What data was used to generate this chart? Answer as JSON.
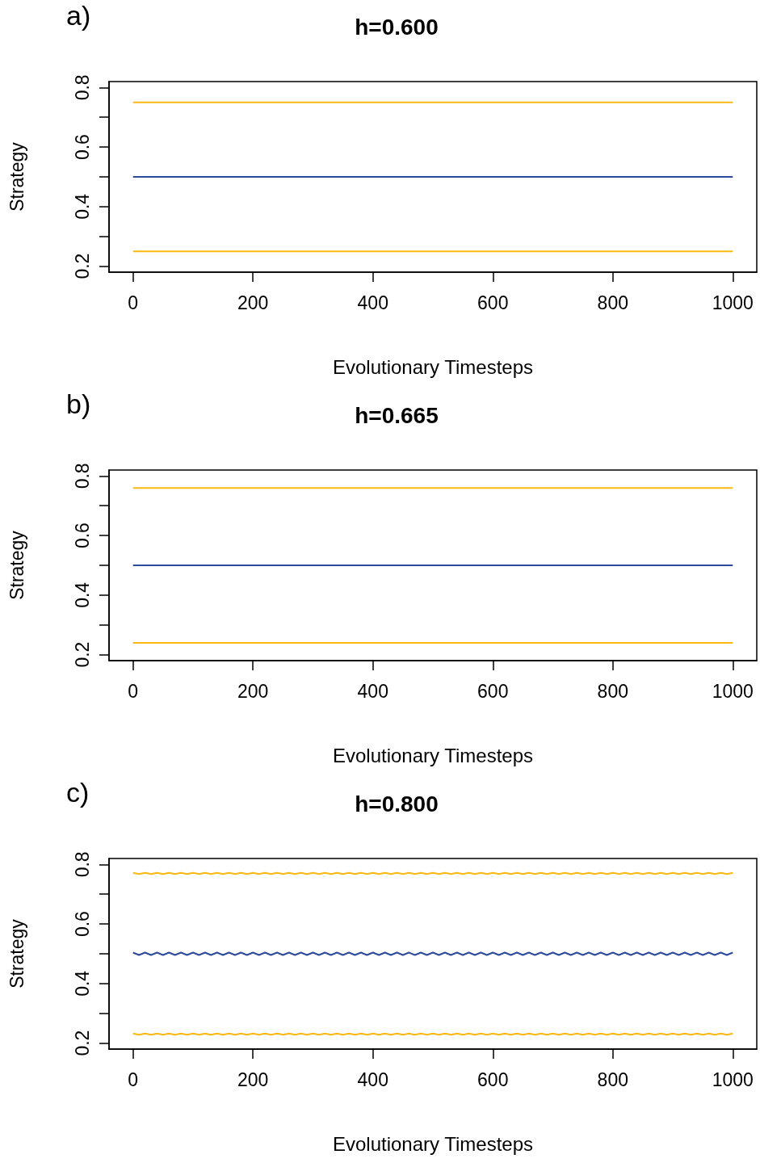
{
  "chart_data": [
    {
      "type": "line",
      "title": "h=0.600",
      "annotations": [
        "a)"
      ],
      "xlabel": "Evolutionary Timesteps",
      "ylabel": "Strategy",
      "x": [
        0,
        1000
      ],
      "series": [
        {
          "color": "#fbb812",
          "values": [
            0.75,
            0.75
          ]
        },
        {
          "color": "#2e4a9b",
          "values": [
            0.5,
            0.5
          ]
        },
        {
          "color": "#fbb812",
          "values": [
            0.25,
            0.25
          ]
        }
      ],
      "xlim": [
        -40,
        1040
      ],
      "xticks": [
        0,
        200,
        400,
        600,
        800,
        1000
      ],
      "ylim": [
        0.18,
        0.82
      ],
      "yticks": [
        0.2,
        {
          "value": 0.3,
          "label": null
        },
        0.4,
        {
          "value": 0.5,
          "label": null
        },
        0.6,
        {
          "value": 0.7,
          "label": null
        },
        0.8
      ],
      "grid": false,
      "marker": "none",
      "line_style": "solid"
    },
    {
      "type": "line",
      "title": "h=0.665",
      "annotations": [
        "b)"
      ],
      "xlabel": "Evolutionary Timesteps",
      "ylabel": "Strategy",
      "x": [
        0,
        1000
      ],
      "series": [
        {
          "color": "#fbb812",
          "values": [
            0.76,
            0.76
          ]
        },
        {
          "color": "#2e4a9b",
          "values": [
            0.5,
            0.5
          ]
        },
        {
          "color": "#fbb812",
          "values": [
            0.24,
            0.24
          ]
        }
      ],
      "xlim": [
        -40,
        1040
      ],
      "xticks": [
        0,
        200,
        400,
        600,
        800,
        1000
      ],
      "ylim": [
        0.18,
        0.82
      ],
      "yticks": [
        0.2,
        {
          "value": 0.3,
          "label": null
        },
        0.4,
        {
          "value": 0.5,
          "label": null
        },
        0.6,
        {
          "value": 0.7,
          "label": null
        },
        0.8
      ],
      "grid": false,
      "marker": "none",
      "line_style": "solid"
    },
    {
      "type": "line",
      "title": "h=0.800",
      "annotations": [
        "c)"
      ],
      "xlabel": "Evolutionary Timesteps",
      "ylabel": "Strategy",
      "x": [
        0,
        10,
        20,
        30,
        40,
        50,
        60,
        70,
        80,
        90,
        100,
        110,
        120,
        130,
        140,
        150,
        160,
        170,
        180,
        190,
        200,
        210,
        220,
        230,
        240,
        250,
        260,
        270,
        280,
        290,
        300,
        310,
        320,
        330,
        340,
        350,
        360,
        370,
        380,
        390,
        400,
        410,
        420,
        430,
        440,
        450,
        460,
        470,
        480,
        490,
        500,
        510,
        520,
        530,
        540,
        550,
        560,
        570,
        580,
        590,
        600,
        610,
        620,
        630,
        640,
        650,
        660,
        670,
        680,
        690,
        700,
        710,
        720,
        730,
        740,
        750,
        760,
        770,
        780,
        790,
        800,
        810,
        820,
        830,
        840,
        850,
        860,
        870,
        880,
        890,
        900,
        910,
        920,
        930,
        940,
        950,
        960,
        970,
        980,
        990,
        1000
      ],
      "series": [
        {
          "color": "#fbb812",
          "values": [
            0.772,
            0.768,
            0.772,
            0.768,
            0.772,
            0.768,
            0.772,
            0.768,
            0.772,
            0.768,
            0.772,
            0.768,
            0.772,
            0.768,
            0.772,
            0.768,
            0.772,
            0.768,
            0.772,
            0.768,
            0.772,
            0.768,
            0.772,
            0.768,
            0.772,
            0.768,
            0.772,
            0.768,
            0.772,
            0.768,
            0.772,
            0.768,
            0.772,
            0.768,
            0.772,
            0.768,
            0.772,
            0.768,
            0.772,
            0.768,
            0.772,
            0.768,
            0.772,
            0.768,
            0.772,
            0.768,
            0.772,
            0.768,
            0.772,
            0.768,
            0.772,
            0.768,
            0.772,
            0.768,
            0.772,
            0.768,
            0.772,
            0.768,
            0.772,
            0.768,
            0.772,
            0.768,
            0.772,
            0.768,
            0.772,
            0.768,
            0.772,
            0.768,
            0.772,
            0.768,
            0.772,
            0.768,
            0.772,
            0.768,
            0.772,
            0.768,
            0.772,
            0.768,
            0.772,
            0.768,
            0.772,
            0.768,
            0.772,
            0.768,
            0.772,
            0.768,
            0.772,
            0.768,
            0.772,
            0.768,
            0.772,
            0.768,
            0.772,
            0.768,
            0.772,
            0.768,
            0.772,
            0.768,
            0.772,
            0.768,
            0.772
          ]
        },
        {
          "color": "#2e4a9b",
          "values": [
            0.504,
            0.496,
            0.504,
            0.496,
            0.504,
            0.496,
            0.504,
            0.496,
            0.504,
            0.496,
            0.504,
            0.496,
            0.504,
            0.496,
            0.504,
            0.496,
            0.504,
            0.496,
            0.504,
            0.496,
            0.504,
            0.496,
            0.504,
            0.496,
            0.504,
            0.496,
            0.504,
            0.496,
            0.504,
            0.496,
            0.504,
            0.496,
            0.504,
            0.496,
            0.504,
            0.496,
            0.504,
            0.496,
            0.504,
            0.496,
            0.504,
            0.496,
            0.504,
            0.496,
            0.504,
            0.496,
            0.504,
            0.496,
            0.504,
            0.496,
            0.504,
            0.496,
            0.504,
            0.496,
            0.504,
            0.496,
            0.504,
            0.496,
            0.504,
            0.496,
            0.504,
            0.496,
            0.504,
            0.496,
            0.504,
            0.496,
            0.504,
            0.496,
            0.504,
            0.496,
            0.504,
            0.496,
            0.504,
            0.496,
            0.504,
            0.496,
            0.504,
            0.496,
            0.504,
            0.496,
            0.504,
            0.496,
            0.504,
            0.496,
            0.504,
            0.496,
            0.504,
            0.496,
            0.504,
            0.496,
            0.504,
            0.496,
            0.504,
            0.496,
            0.504,
            0.496,
            0.504,
            0.496,
            0.504,
            0.496,
            0.504
          ]
        },
        {
          "color": "#fbb812",
          "values": [
            0.232,
            0.228,
            0.232,
            0.228,
            0.232,
            0.228,
            0.232,
            0.228,
            0.232,
            0.228,
            0.232,
            0.228,
            0.232,
            0.228,
            0.232,
            0.228,
            0.232,
            0.228,
            0.232,
            0.228,
            0.232,
            0.228,
            0.232,
            0.228,
            0.232,
            0.228,
            0.232,
            0.228,
            0.232,
            0.228,
            0.232,
            0.228,
            0.232,
            0.228,
            0.232,
            0.228,
            0.232,
            0.228,
            0.232,
            0.228,
            0.232,
            0.228,
            0.232,
            0.228,
            0.232,
            0.228,
            0.232,
            0.228,
            0.232,
            0.228,
            0.232,
            0.228,
            0.232,
            0.228,
            0.232,
            0.228,
            0.232,
            0.228,
            0.232,
            0.228,
            0.232,
            0.228,
            0.232,
            0.228,
            0.232,
            0.228,
            0.232,
            0.228,
            0.232,
            0.228,
            0.232,
            0.228,
            0.232,
            0.228,
            0.232,
            0.228,
            0.232,
            0.228,
            0.232,
            0.228,
            0.232,
            0.228,
            0.232,
            0.228,
            0.232,
            0.228,
            0.232,
            0.228,
            0.232,
            0.228,
            0.232,
            0.228,
            0.232,
            0.228,
            0.232,
            0.228,
            0.232,
            0.228,
            0.232,
            0.228,
            0.232
          ]
        }
      ],
      "xlim": [
        -40,
        1040
      ],
      "xticks": [
        0,
        200,
        400,
        600,
        800,
        1000
      ],
      "ylim": [
        0.18,
        0.82
      ],
      "yticks": [
        0.2,
        {
          "value": 0.3,
          "label": null
        },
        0.4,
        {
          "value": 0.5,
          "label": null
        },
        0.6,
        {
          "value": 0.7,
          "label": null
        },
        0.8
      ],
      "grid": false,
      "marker": "none",
      "line_style": "solid"
    }
  ]
}
